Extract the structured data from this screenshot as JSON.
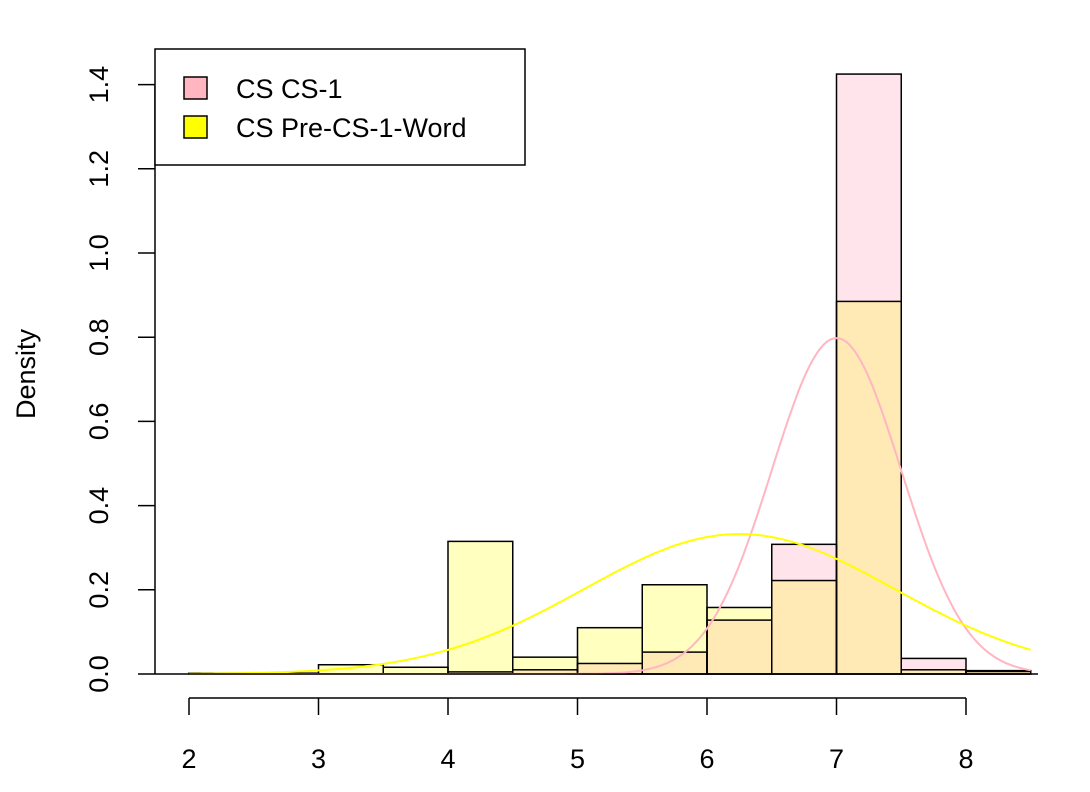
{
  "chart_data": {
    "type": "bar",
    "subtype": "overlaid-histogram-with-density-curves",
    "title": "",
    "xlabel": "",
    "ylabel": "Density",
    "xlim": [
      1.7,
      8.55
    ],
    "ylim": [
      0,
      1.48
    ],
    "x_ticks": [
      2,
      3,
      4,
      5,
      6,
      7,
      8
    ],
    "y_ticks": [
      0.0,
      0.2,
      0.4,
      0.6,
      0.8,
      1.0,
      1.2,
      1.4
    ],
    "y_tick_labels": [
      "0.0",
      "0.2",
      "0.4",
      "0.6",
      "0.8",
      "1.0",
      "1.2",
      "1.4"
    ],
    "legend_position": "top-left",
    "bin_width": 0.5,
    "series": [
      {
        "name": "CS CS-1",
        "legend_swatch_color": "#ffb6c1",
        "fill_color": "#ffe4ec",
        "curve_color": "#ffb6c1",
        "bins": [
          {
            "x0": 4.0,
            "x1": 4.5,
            "density": 0.005
          },
          {
            "x0": 4.5,
            "x1": 5.0,
            "density": 0.01
          },
          {
            "x0": 5.0,
            "x1": 5.5,
            "density": 0.025
          },
          {
            "x0": 5.5,
            "x1": 6.0,
            "density": 0.052
          },
          {
            "x0": 6.0,
            "x1": 6.5,
            "density": 0.128
          },
          {
            "x0": 6.5,
            "x1": 7.0,
            "density": 0.308
          },
          {
            "x0": 7.0,
            "x1": 7.5,
            "density": 1.425
          },
          {
            "x0": 7.5,
            "x1": 8.0,
            "density": 0.037
          },
          {
            "x0": 8.0,
            "x1": 8.5,
            "density": 0.008
          }
        ],
        "density_curve": {
          "mean": 7.0,
          "sd": 0.5
        }
      },
      {
        "name": "CS Pre-CS-1-Word",
        "legend_swatch_color": "#ffff00",
        "fill_color": "#ffffc0",
        "curve_color": "#ffff00",
        "bins": [
          {
            "x0": 2.0,
            "x1": 2.5,
            "density": 0.002
          },
          {
            "x0": 2.5,
            "x1": 3.0,
            "density": 0.002
          },
          {
            "x0": 3.0,
            "x1": 3.5,
            "density": 0.022
          },
          {
            "x0": 3.5,
            "x1": 4.0,
            "density": 0.016
          },
          {
            "x0": 4.0,
            "x1": 4.5,
            "density": 0.315
          },
          {
            "x0": 4.5,
            "x1": 5.0,
            "density": 0.04
          },
          {
            "x0": 5.0,
            "x1": 5.5,
            "density": 0.11
          },
          {
            "x0": 5.5,
            "x1": 6.0,
            "density": 0.212
          },
          {
            "x0": 6.0,
            "x1": 6.5,
            "density": 0.158
          },
          {
            "x0": 6.5,
            "x1": 7.0,
            "density": 0.222
          },
          {
            "x0": 7.0,
            "x1": 7.5,
            "density": 0.885
          },
          {
            "x0": 7.5,
            "x1": 8.0,
            "density": 0.01
          },
          {
            "x0": 8.0,
            "x1": 8.5,
            "density": 0.006
          }
        ],
        "density_curve": {
          "mean": 6.25,
          "sd": 1.2
        }
      }
    ],
    "overlap_fill_color": "#ffe9b5"
  }
}
